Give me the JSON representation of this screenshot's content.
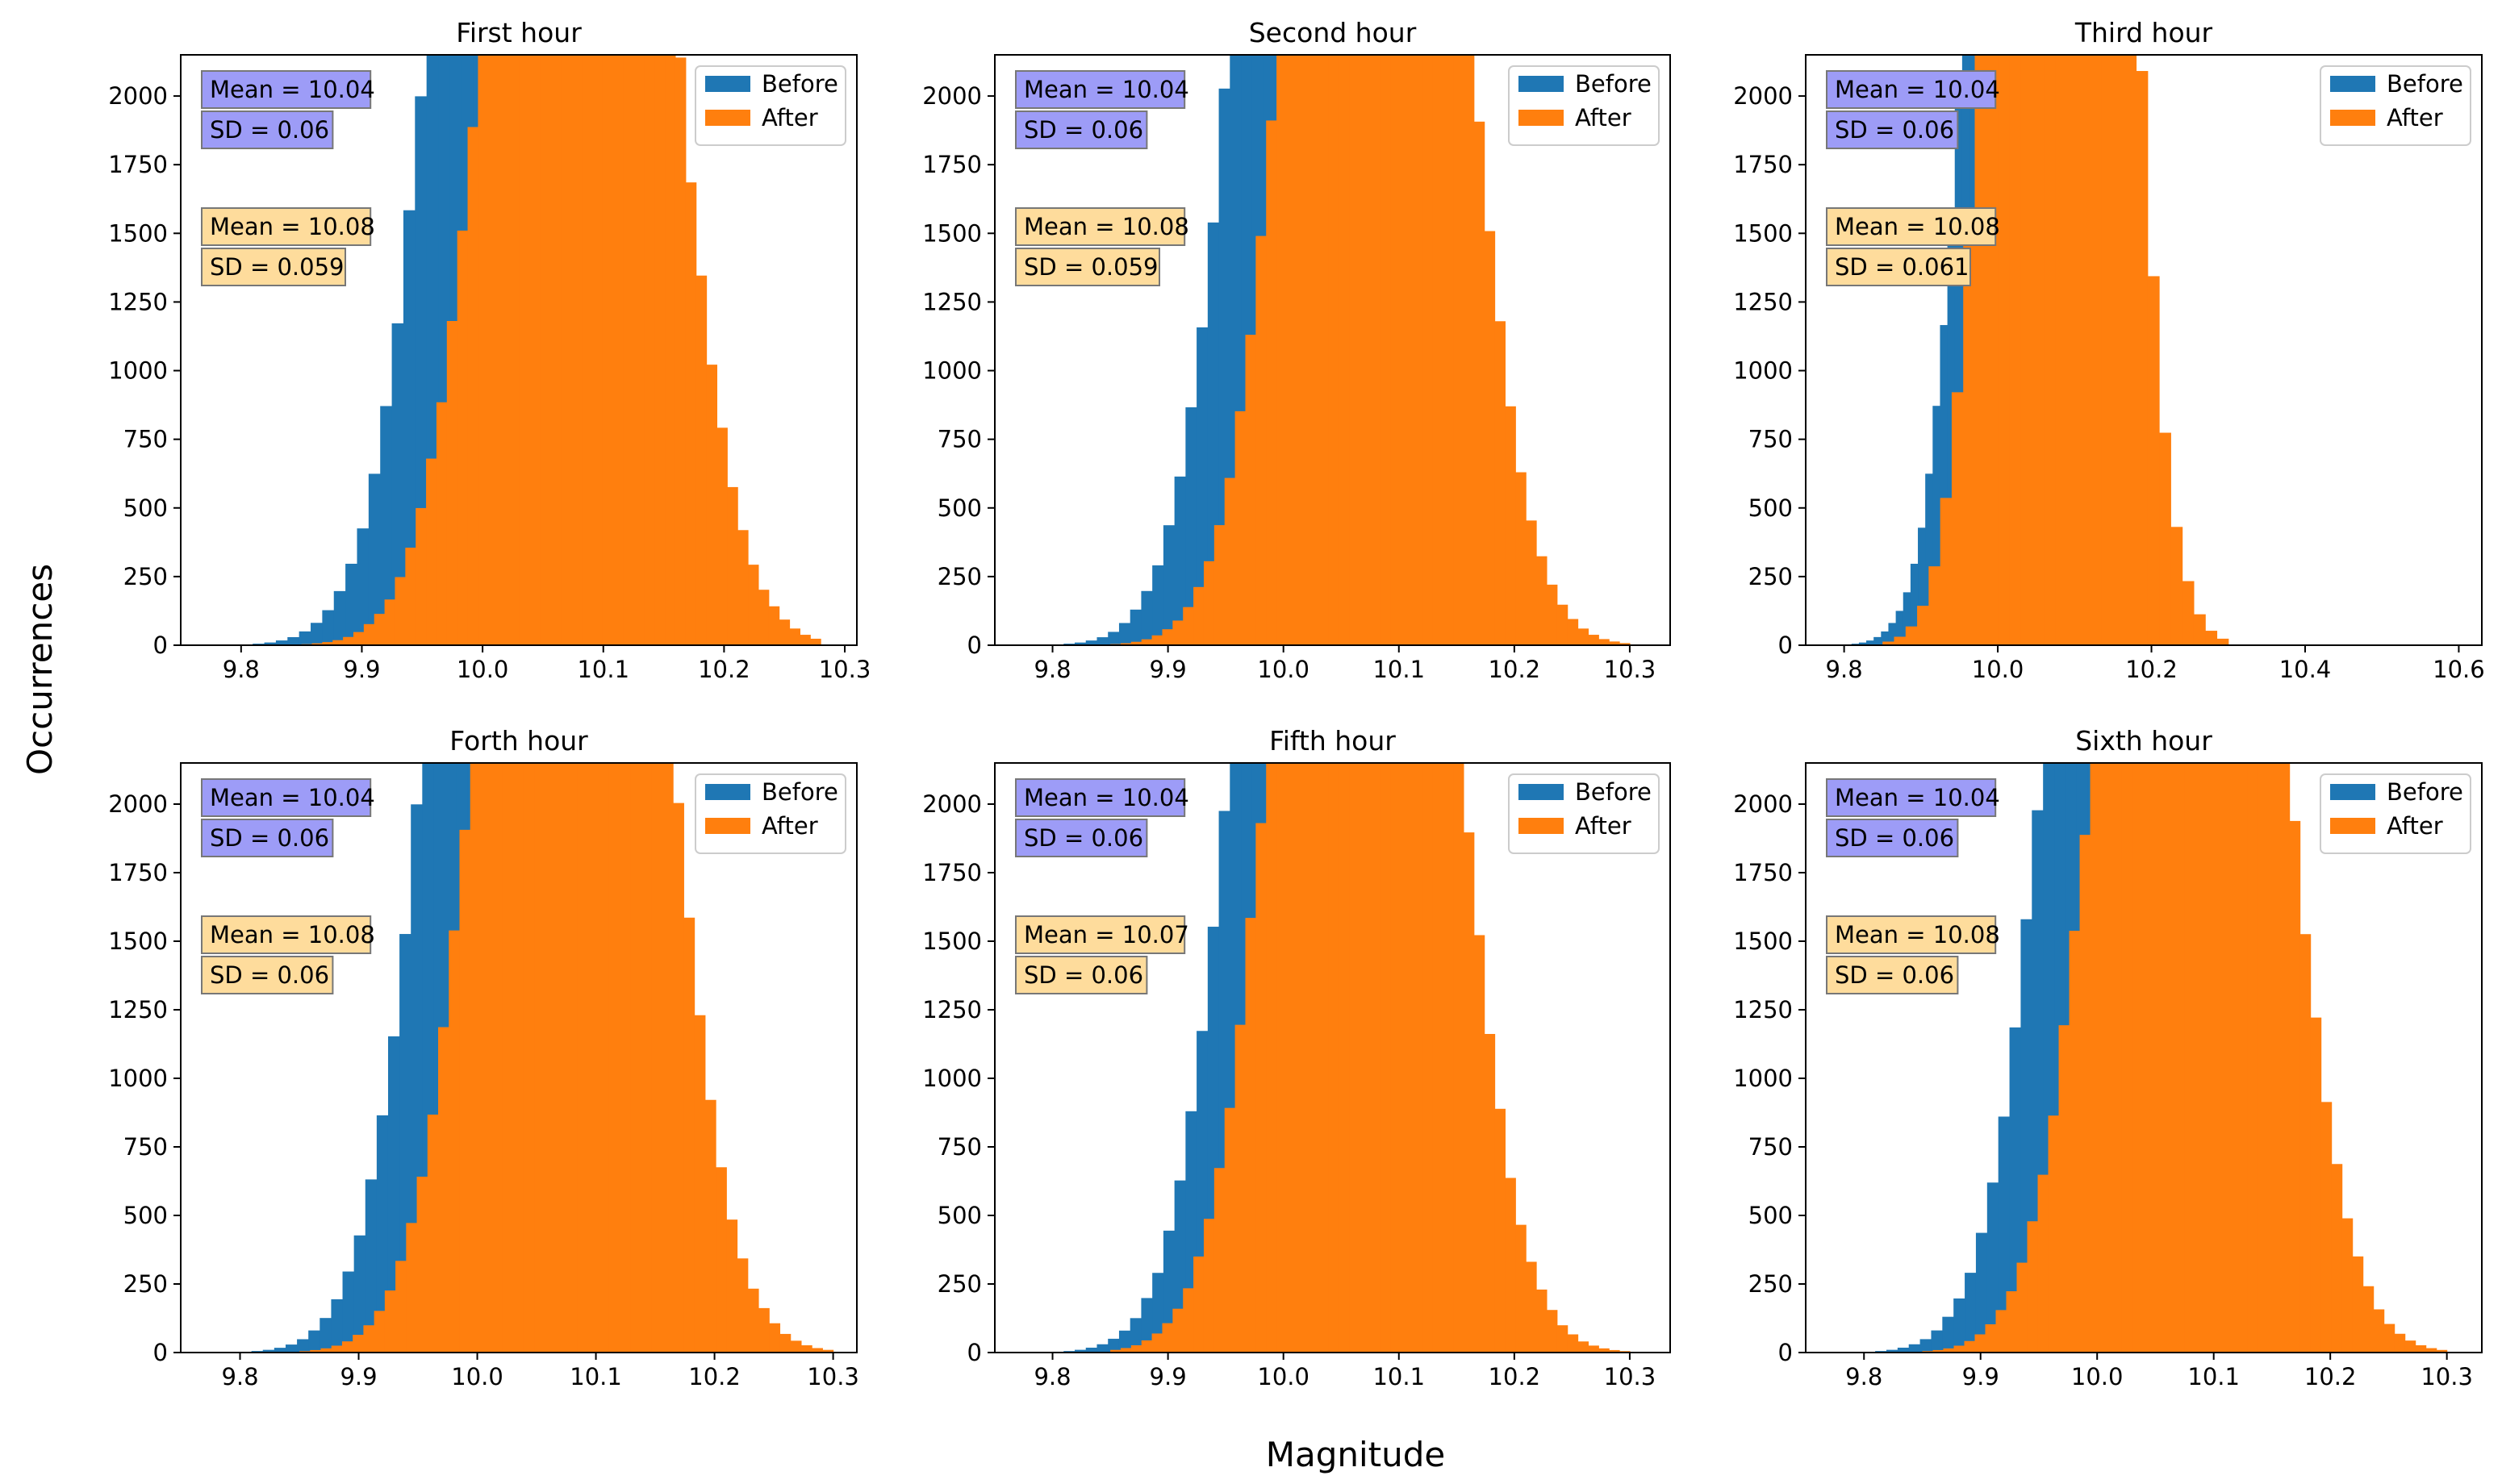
{
  "figure": {
    "xlabel": "Magnitude",
    "ylabel": "Occurrences"
  },
  "colors": {
    "before": "#1f77b4",
    "after": "#ff7f0e",
    "before_box": "#9d9cf7",
    "after_box": "#fedc9c",
    "box_edge": "#777777"
  },
  "chart_data": [
    {
      "type": "bar",
      "subtype": "overlaid-histogram",
      "title": "First hour",
      "xlim": [
        9.75,
        10.31
      ],
      "ylim": [
        0,
        2150
      ],
      "xticks": [
        9.8,
        9.9,
        10.0,
        10.1,
        10.2,
        10.3
      ],
      "xtick_labels": [
        "9.8",
        "9.9",
        "10.0",
        "10.1",
        "10.2",
        "10.3"
      ],
      "yticks": [
        0,
        250,
        500,
        750,
        1000,
        1250,
        1500,
        1750,
        2000
      ],
      "ytick_labels": [
        "0",
        "250",
        "500",
        "750",
        "1000",
        "1250",
        "1500",
        "1750",
        "2000"
      ],
      "legend": [
        "Before",
        "After"
      ],
      "legend_position": "upper-right",
      "series": [
        {
          "name": "Before",
          "mean": 10.04,
          "sd": 0.06,
          "bins": 50,
          "x_range": [
            9.8,
            10.28
          ]
        },
        {
          "name": "After",
          "mean": 10.08,
          "sd": 0.059,
          "bins": 50,
          "x_range": [
            9.85,
            10.28
          ]
        }
      ],
      "stats": {
        "before": [
          "Mean = 10.04",
          "SD = 0.06"
        ],
        "after": [
          "Mean = 10.08",
          "SD = 0.059"
        ]
      }
    },
    {
      "type": "bar",
      "subtype": "overlaid-histogram",
      "title": "Second hour",
      "xlim": [
        9.75,
        10.335
      ],
      "ylim": [
        0,
        2150
      ],
      "xticks": [
        9.8,
        9.9,
        10.0,
        10.1,
        10.2,
        10.3
      ],
      "xtick_labels": [
        "9.8",
        "9.9",
        "10.0",
        "10.1",
        "10.2",
        "10.3"
      ],
      "yticks": [
        0,
        250,
        500,
        750,
        1000,
        1250,
        1500,
        1750,
        2000
      ],
      "ytick_labels": [
        "0",
        "250",
        "500",
        "750",
        "1000",
        "1250",
        "1500",
        "1750",
        "2000"
      ],
      "legend": [
        "Before",
        "After"
      ],
      "legend_position": "upper-right",
      "series": [
        {
          "name": "Before",
          "mean": 10.04,
          "sd": 0.06,
          "bins": 50,
          "x_range": [
            9.8,
            10.28
          ]
        },
        {
          "name": "After",
          "mean": 10.08,
          "sd": 0.059,
          "bins": 50,
          "x_range": [
            9.85,
            10.3
          ]
        }
      ],
      "stats": {
        "before": [
          "Mean = 10.04",
          "SD = 0.06"
        ],
        "after": [
          "Mean = 10.08",
          "SD = 0.059"
        ]
      }
    },
    {
      "type": "bar",
      "subtype": "overlaid-histogram",
      "title": "Third hour",
      "xlim": [
        9.75,
        10.63
      ],
      "ylim": [
        0,
        2150
      ],
      "xticks": [
        9.8,
        10.0,
        10.2,
        10.4,
        10.6
      ],
      "xtick_labels": [
        "9.8",
        "10.0",
        "10.2",
        "10.4",
        "10.6"
      ],
      "yticks": [
        0,
        250,
        500,
        750,
        1000,
        1250,
        1500,
        1750,
        2000
      ],
      "ytick_labels": [
        "0",
        "250",
        "500",
        "750",
        "1000",
        "1250",
        "1500",
        "1750",
        "2000"
      ],
      "legend": [
        "Before",
        "After"
      ],
      "legend_position": "upper-right",
      "series": [
        {
          "name": "Before",
          "mean": 10.04,
          "sd": 0.06,
          "bins": 50,
          "x_range": [
            9.8,
            10.28
          ]
        },
        {
          "name": "After",
          "mean": 10.08,
          "sd": 0.061,
          "bins": 30,
          "x_range": [
            9.85,
            10.3
          ]
        }
      ],
      "stats": {
        "before": [
          "Mean = 10.04",
          "SD = 0.06"
        ],
        "after": [
          "Mean = 10.08",
          "SD = 0.061"
        ]
      }
    },
    {
      "type": "bar",
      "subtype": "overlaid-histogram",
      "title": "Forth hour",
      "xlim": [
        9.75,
        10.32
      ],
      "ylim": [
        0,
        2150
      ],
      "xticks": [
        9.8,
        9.9,
        10.0,
        10.1,
        10.2,
        10.3
      ],
      "xtick_labels": [
        "9.8",
        "9.9",
        "10.0",
        "10.1",
        "10.2",
        "10.3"
      ],
      "yticks": [
        0,
        250,
        500,
        750,
        1000,
        1250,
        1500,
        1750,
        2000
      ],
      "ytick_labels": [
        "0",
        "250",
        "500",
        "750",
        "1000",
        "1250",
        "1500",
        "1750",
        "2000"
      ],
      "legend": [
        "Before",
        "After"
      ],
      "legend_position": "upper-right",
      "series": [
        {
          "name": "Before",
          "mean": 10.04,
          "sd": 0.06,
          "bins": 50,
          "x_range": [
            9.8,
            10.28
          ]
        },
        {
          "name": "After",
          "mean": 10.08,
          "sd": 0.06,
          "bins": 50,
          "x_range": [
            9.85,
            10.3
          ]
        }
      ],
      "stats": {
        "before": [
          "Mean = 10.04",
          "SD = 0.06"
        ],
        "after": [
          "Mean = 10.08",
          "SD = 0.06"
        ]
      }
    },
    {
      "type": "bar",
      "subtype": "overlaid-histogram",
      "title": "Fifth hour",
      "xlim": [
        9.75,
        10.335
      ],
      "ylim": [
        0,
        2150
      ],
      "xticks": [
        9.8,
        9.9,
        10.0,
        10.1,
        10.2,
        10.3
      ],
      "xtick_labels": [
        "9.8",
        "9.9",
        "10.0",
        "10.1",
        "10.2",
        "10.3"
      ],
      "yticks": [
        0,
        250,
        500,
        750,
        1000,
        1250,
        1500,
        1750,
        2000
      ],
      "ytick_labels": [
        "0",
        "250",
        "500",
        "750",
        "1000",
        "1250",
        "1500",
        "1750",
        "2000"
      ],
      "legend": [
        "Before",
        "After"
      ],
      "legend_position": "upper-right",
      "series": [
        {
          "name": "Before",
          "mean": 10.04,
          "sd": 0.06,
          "bins": 50,
          "x_range": [
            9.8,
            10.28
          ]
        },
        {
          "name": "After",
          "mean": 10.07,
          "sd": 0.06,
          "bins": 50,
          "x_range": [
            9.85,
            10.3
          ]
        }
      ],
      "stats": {
        "before": [
          "Mean = 10.04",
          "SD = 0.06"
        ],
        "after": [
          "Mean = 10.07",
          "SD = 0.06"
        ]
      }
    },
    {
      "type": "bar",
      "subtype": "overlaid-histogram",
      "title": "Sixth hour",
      "xlim": [
        9.75,
        10.33
      ],
      "ylim": [
        0,
        2150
      ],
      "xticks": [
        9.8,
        9.9,
        10.0,
        10.1,
        10.2,
        10.3
      ],
      "xtick_labels": [
        "9.8",
        "9.9",
        "10.0",
        "10.1",
        "10.2",
        "10.3"
      ],
      "yticks": [
        0,
        250,
        500,
        750,
        1000,
        1250,
        1500,
        1750,
        2000
      ],
      "ytick_labels": [
        "0",
        "250",
        "500",
        "750",
        "1000",
        "1250",
        "1500",
        "1750",
        "2000"
      ],
      "legend": [
        "Before",
        "After"
      ],
      "legend_position": "upper-right",
      "series": [
        {
          "name": "Before",
          "mean": 10.04,
          "sd": 0.06,
          "bins": 50,
          "x_range": [
            9.8,
            10.28
          ]
        },
        {
          "name": "After",
          "mean": 10.08,
          "sd": 0.06,
          "bins": 50,
          "x_range": [
            9.85,
            10.3
          ]
        }
      ],
      "stats": {
        "before": [
          "Mean = 10.04",
          "SD = 0.06"
        ],
        "after": [
          "Mean = 10.08",
          "SD = 0.06"
        ]
      }
    }
  ]
}
